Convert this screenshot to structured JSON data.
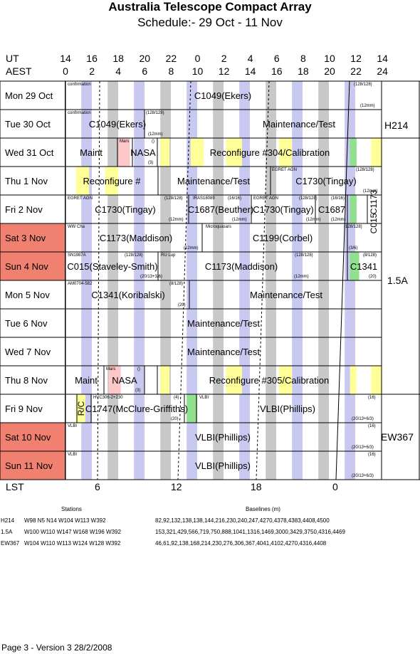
{
  "title": "Australia Telescope Compact Array",
  "subtitle": "Schedule:- 29 Oct - 11 Nov",
  "ut_label": "UT",
  "aest_label": "AEST",
  "ut_ticks": [
    "14",
    "16",
    "18",
    "20",
    "22",
    "0",
    "2",
    "4",
    "6",
    "8",
    "10",
    "12",
    "14"
  ],
  "aest_ticks": [
    "0",
    "2",
    "4",
    "6",
    "8",
    "10",
    "12",
    "14",
    "16",
    "18",
    "20",
    "22",
    "24"
  ],
  "lst_label": "LST",
  "lst_ticks": [
    "6",
    "12",
    "18",
    "0"
  ],
  "rows": [
    {
      "label": "Mon  29 Oct",
      "weekend": false
    },
    {
      "label": "Tue  30 Oct",
      "weekend": false
    },
    {
      "label": "Wed  31 Oct",
      "weekend": false
    },
    {
      "label": "Thu   1  Nov",
      "weekend": false
    },
    {
      "label": "Fri   2  Nov",
      "weekend": false
    },
    {
      "label": "Sat  3  Nov",
      "weekend": true
    },
    {
      "label": "Sun  4  Nov",
      "weekend": true
    },
    {
      "label": "Mon  5  Nov",
      "weekend": false
    },
    {
      "label": "Tue   6  Nov",
      "weekend": false
    },
    {
      "label": "Wed  7  Nov",
      "weekend": false
    },
    {
      "label": "Thu   8  Nov",
      "weekend": false
    },
    {
      "label": "Fri   9  Nov",
      "weekend": false
    },
    {
      "label": "Sat  10 Nov",
      "weekend": true
    },
    {
      "label": "Sun  11 Nov",
      "weekend": true
    }
  ],
  "configs": [
    "H214",
    "1.5A",
    "EW367"
  ],
  "blocks": [
    {
      "row": 0,
      "text": "C1049(Ekers)",
      "small": [
        "confirmation",
        "(128/128)",
        "(12mm)"
      ]
    },
    {
      "row": 1,
      "text": "C1049(Ekers)",
      "small": [
        "confirmation",
        "(128/128)",
        "(12mm)"
      ]
    },
    {
      "row": 1,
      "text": "Maintenance/Test"
    },
    {
      "row": 2,
      "text": "Maint"
    },
    {
      "row": 2,
      "text": "NASA",
      "small": [
        "Mars",
        "()",
        "(3)"
      ]
    },
    {
      "row": 2,
      "text": "Reconfigure #304/Calibration"
    },
    {
      "row": 3,
      "text": "Reconfigure #"
    },
    {
      "row": 3,
      "text": "Maintenance/Test"
    },
    {
      "row": 3,
      "text": "C1730(Tingay)",
      "small": [
        "EGRET AGN",
        "(128/128)",
        "(12mm)"
      ]
    },
    {
      "row": 4,
      "text": "C1730(Tingay)",
      "small": [
        "EGRET AGN",
        "(128/128)",
        "(12mm)"
      ]
    },
    {
      "row": 4,
      "text": "C1687(Beuther)",
      "small": [
        "IRAS18089",
        "(16/16)",
        "(12mm)"
      ]
    },
    {
      "row": 4,
      "text": "C1730(Tingay)",
      "small": [
        "EGRET AGN",
        "(128/128)",
        "(12mm)"
      ]
    },
    {
      "row": 4,
      "text": "C1687",
      "small": [
        "(16/16)",
        "(12mm)"
      ]
    },
    {
      "row": 4,
      "text": "C1173"
    },
    {
      "row": 4,
      "text": "C015"
    },
    {
      "row": 5,
      "text": "C1173(Maddison)",
      "small": [
        "WW Cha",
        "(12mm)"
      ]
    },
    {
      "row": 5,
      "text": "C1199(Corbel)",
      "small": [
        "Microquasars",
        "(128/128)",
        "(3/6)"
      ]
    },
    {
      "row": 6,
      "text": "C015(Staveley-Smith)",
      "small": [
        "SN1987A",
        "(128/128)",
        "(20/13+3/6)"
      ]
    },
    {
      "row": 6,
      "text": "C1173(Maddison)",
      "small": [
        "RU Lup",
        "(128/128)",
        "(12mm)"
      ]
    },
    {
      "row": 6,
      "text": "C1341",
      "small": [
        "(8/128)",
        "(20)"
      ]
    },
    {
      "row": 7,
      "text": "C1341(Koribalski)",
      "small": [
        "AM0704-582",
        "(8/128)",
        "(20)"
      ]
    },
    {
      "row": 7,
      "text": "Maintenance/Test"
    },
    {
      "row": 8,
      "text": "Maintenance/Test"
    },
    {
      "row": 9,
      "text": "Maintenance/Test"
    },
    {
      "row": 10,
      "text": "Maint"
    },
    {
      "row": 10,
      "text": "NASA",
      "small": [
        "Mars",
        "()",
        "(3)"
      ]
    },
    {
      "row": 10,
      "text": "Reconfigure #305/Calibration"
    },
    {
      "row": 11,
      "text": "R/C"
    },
    {
      "row": 11,
      "text": "C1747(McClure-Griffiths)",
      "small": [
        "HVC306-2+230",
        "(4)",
        "(20)"
      ]
    },
    {
      "row": 11,
      "text": "VLBI(Phillips)",
      "small": [
        "VLBI",
        "(16)",
        "(20/13+6/3)"
      ]
    },
    {
      "row": 12,
      "text": "VLBI(Phillips)",
      "small": [
        "VLBI",
        "(16)",
        "(20/13+6/3)"
      ]
    },
    {
      "row": 13,
      "text": "VLBI(Phillips)",
      "small": [
        "VLBI",
        "(16)",
        "(20/13+6/3)"
      ]
    }
  ],
  "footer_table": {
    "stations_header": "Stations",
    "baselines_header": "Baselines (m)",
    "rows": [
      {
        "config": "H214",
        "stations": "W98 N5 N14 W104 W113 W392",
        "baselines": "82,92,132,138,138,144,216,230,240,247,4270,4378,4383,4408,4500"
      },
      {
        "config": "1.5A",
        "stations": "W100 W110 W147 W168 W196 W392",
        "baselines": "153,321,429,566,719,750,888,1041,1316,1469,3000,3429,3750,4316,4469"
      },
      {
        "config": "EW367",
        "stations": "W104 W110 W113 W124 W128 W392",
        "baselines": "46,61,92,138,168,214,230,276,306,367,4041,4102,4270,4316,4408"
      }
    ]
  },
  "page_footer": "Page 3 - Version 3  28/2/2008"
}
